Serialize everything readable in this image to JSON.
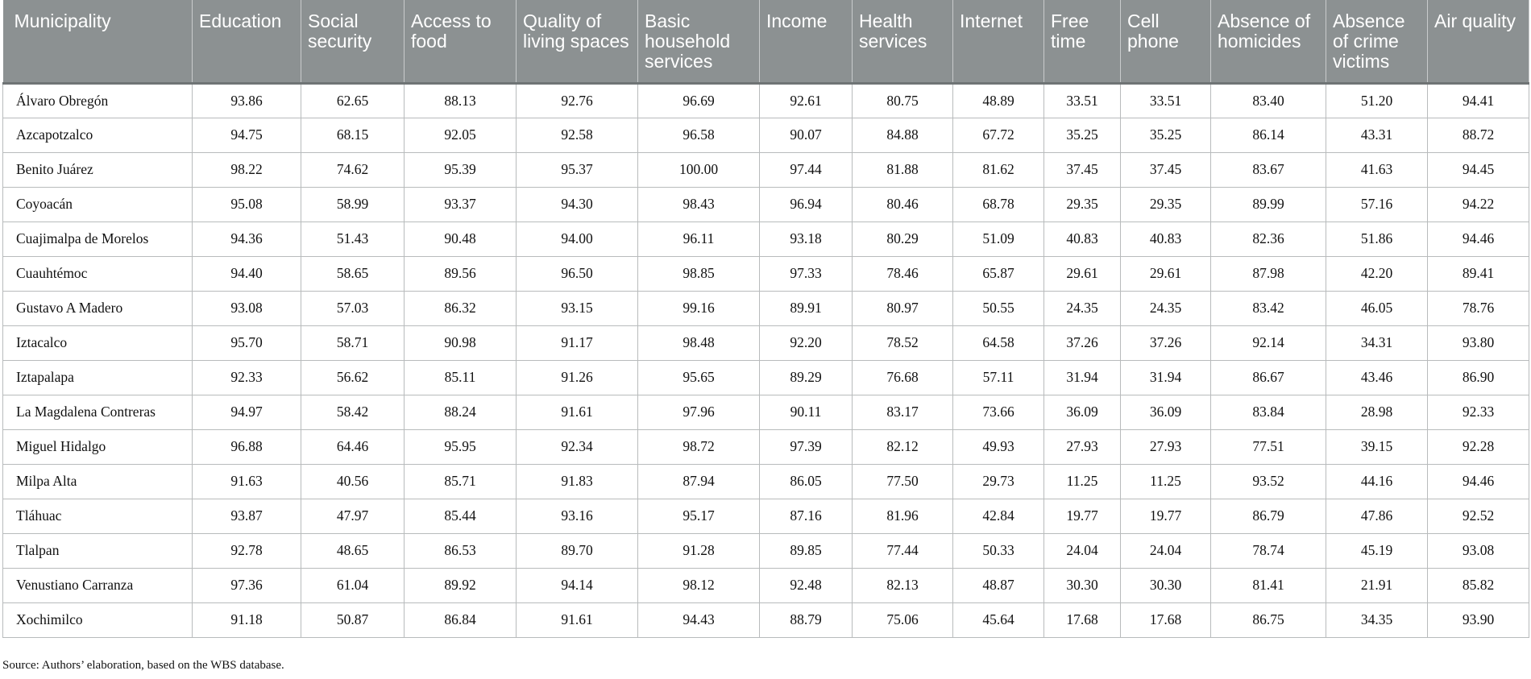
{
  "columns": [
    "Municipality",
    "Education",
    "Social security",
    "Access to food",
    "Quality of living spaces",
    "Basic household services",
    "Income",
    "Health services",
    "Internet",
    "Free time",
    "Cell phone",
    "Absence of homicides",
    "Absence of crime victims",
    "Air quality"
  ],
  "rows": [
    [
      "Álvaro Obregón",
      "93.86",
      "62.65",
      "88.13",
      "92.76",
      "96.69",
      "92.61",
      "80.75",
      "48.89",
      "33.51",
      "33.51",
      "83.40",
      "51.20",
      "94.41"
    ],
    [
      "Azcapotzalco",
      "94.75",
      "68.15",
      "92.05",
      "92.58",
      "96.58",
      "90.07",
      "84.88",
      "67.72",
      "35.25",
      "35.25",
      "86.14",
      "43.31",
      "88.72"
    ],
    [
      "Benito Juárez",
      "98.22",
      "74.62",
      "95.39",
      "95.37",
      "100.00",
      "97.44",
      "81.88",
      "81.62",
      "37.45",
      "37.45",
      "83.67",
      "41.63",
      "94.45"
    ],
    [
      "Coyoacán",
      "95.08",
      "58.99",
      "93.37",
      "94.30",
      "98.43",
      "96.94",
      "80.46",
      "68.78",
      "29.35",
      "29.35",
      "89.99",
      "57.16",
      "94.22"
    ],
    [
      "Cuajimalpa de Morelos",
      "94.36",
      "51.43",
      "90.48",
      "94.00",
      "96.11",
      "93.18",
      "80.29",
      "51.09",
      "40.83",
      "40.83",
      "82.36",
      "51.86",
      "94.46"
    ],
    [
      "Cuauhtémoc",
      "94.40",
      "58.65",
      "89.56",
      "96.50",
      "98.85",
      "97.33",
      "78.46",
      "65.87",
      "29.61",
      "29.61",
      "87.98",
      "42.20",
      "89.41"
    ],
    [
      "Gustavo A Madero",
      "93.08",
      "57.03",
      "86.32",
      "93.15",
      "99.16",
      "89.91",
      "80.97",
      "50.55",
      "24.35",
      "24.35",
      "83.42",
      "46.05",
      "78.76"
    ],
    [
      "Iztacalco",
      "95.70",
      "58.71",
      "90.98",
      "91.17",
      "98.48",
      "92.20",
      "78.52",
      "64.58",
      "37.26",
      "37.26",
      "92.14",
      "34.31",
      "93.80"
    ],
    [
      "Iztapalapa",
      "92.33",
      "56.62",
      "85.11",
      "91.26",
      "95.65",
      "89.29",
      "76.68",
      "57.11",
      "31.94",
      "31.94",
      "86.67",
      "43.46",
      "86.90"
    ],
    [
      "La Magdalena Contreras",
      "94.97",
      "58.42",
      "88.24",
      "91.61",
      "97.96",
      "90.11",
      "83.17",
      "73.66",
      "36.09",
      "36.09",
      "83.84",
      "28.98",
      "92.33"
    ],
    [
      "Miguel Hidalgo",
      "96.88",
      "64.46",
      "95.95",
      "92.34",
      "98.72",
      "97.39",
      "82.12",
      "49.93",
      "27.93",
      "27.93",
      "77.51",
      "39.15",
      "92.28"
    ],
    [
      "Milpa Alta",
      "91.63",
      "40.56",
      "85.71",
      "91.83",
      "87.94",
      "86.05",
      "77.50",
      "29.73",
      "11.25",
      "11.25",
      "93.52",
      "44.16",
      "94.46"
    ],
    [
      "Tláhuac",
      "93.87",
      "47.97",
      "85.44",
      "93.16",
      "95.17",
      "87.16",
      "81.96",
      "42.84",
      "19.77",
      "19.77",
      "86.79",
      "47.86",
      "92.52"
    ],
    [
      "Tlalpan",
      "92.78",
      "48.65",
      "86.53",
      "89.70",
      "91.28",
      "89.85",
      "77.44",
      "50.33",
      "24.04",
      "24.04",
      "78.74",
      "45.19",
      "93.08"
    ],
    [
      "Venustiano Carranza",
      "97.36",
      "61.04",
      "89.92",
      "94.14",
      "98.12",
      "92.48",
      "82.13",
      "48.87",
      "30.30",
      "30.30",
      "81.41",
      "21.91",
      "85.82"
    ],
    [
      "Xochimilco",
      "91.18",
      "50.87",
      "86.84",
      "91.61",
      "94.43",
      "88.79",
      "75.06",
      "45.64",
      "17.68",
      "17.68",
      "86.75",
      "34.35",
      "93.90"
    ]
  ],
  "source_note": "Source: Authors’ elaboration, based on the WBS database."
}
